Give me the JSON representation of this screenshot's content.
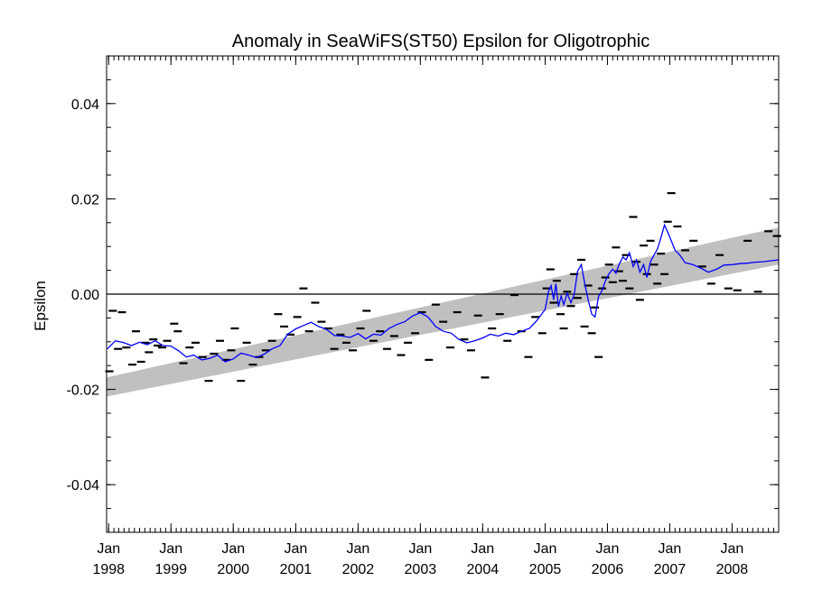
{
  "chart_data": {
    "type": "line",
    "title": "Anomaly in SeaWiFS(ST50) Epsilon for Oligotrophic",
    "ylabel": "Epsilon",
    "xlabel": "",
    "xlim": [
      "1997-12-20",
      "2008-09-30"
    ],
    "ylim": [
      -0.05,
      0.05
    ],
    "y_ticks": [
      "0.04",
      "0.02",
      "0.00",
      "-0.02",
      "-0.04"
    ],
    "x_ticks": [
      {
        "month": "Jan",
        "year": "1998",
        "date": "1998-01-01"
      },
      {
        "month": "Jan",
        "year": "1999",
        "date": "1999-01-01"
      },
      {
        "month": "Jan",
        "year": "2000",
        "date": "2000-01-01"
      },
      {
        "month": "Jan",
        "year": "2001",
        "date": "2001-01-01"
      },
      {
        "month": "Jan",
        "year": "2002",
        "date": "2002-01-01"
      },
      {
        "month": "Jan",
        "year": "2003",
        "date": "2003-01-01"
      },
      {
        "month": "Jan",
        "year": "2004",
        "date": "2004-01-01"
      },
      {
        "month": "Jan",
        "year": "2005",
        "date": "2005-01-01"
      },
      {
        "month": "Jan",
        "year": "2006",
        "date": "2006-01-01"
      },
      {
        "month": "Jan",
        "year": "2007",
        "date": "2007-01-01"
      },
      {
        "month": "Jan",
        "year": "2008",
        "date": "2008-01-01"
      }
    ],
    "zero_line": 0.0,
    "trend_band": {
      "x": [
        "1997-12-20",
        "2008-09-30"
      ],
      "lower": [
        -0.0215,
        0.0062
      ],
      "upper": [
        -0.0175,
        0.014
      ],
      "color": "#c0c0c0"
    },
    "series": [
      {
        "style": "line",
        "color": "#0000ff",
        "x": [
          "1997-12-25",
          "1998-02-10",
          "1998-04-01",
          "1998-05-15",
          "1998-07-01",
          "1998-08-15",
          "1998-10-01",
          "1998-11-15",
          "1999-01-01",
          "1999-02-15",
          "1999-04-01",
          "1999-05-15",
          "1999-07-01",
          "1999-08-15",
          "1999-10-01",
          "1999-11-15",
          "2000-01-01",
          "2000-02-15",
          "2000-04-01",
          "2000-05-15",
          "2000-07-01",
          "2000-08-15",
          "2000-10-01",
          "2000-11-15",
          "2001-01-01",
          "2001-02-15",
          "2001-04-01",
          "2001-05-15",
          "2001-07-01",
          "2001-08-15",
          "2001-10-01",
          "2001-11-15",
          "2002-01-01",
          "2002-02-15",
          "2002-04-01",
          "2002-05-15",
          "2002-07-01",
          "2002-08-15",
          "2002-10-01",
          "2002-11-15",
          "2003-01-01",
          "2003-02-15",
          "2003-04-01",
          "2003-05-15",
          "2003-07-01",
          "2003-08-15",
          "2003-10-01",
          "2003-11-15",
          "2004-01-01",
          "2004-02-15",
          "2004-04-01",
          "2004-05-15",
          "2004-07-01",
          "2004-08-15",
          "2004-10-01",
          "2004-11-15",
          "2005-01-01",
          "2005-01-20",
          "2005-02-05",
          "2005-02-20",
          "2005-03-05",
          "2005-03-20",
          "2005-04-05",
          "2005-04-20",
          "2005-05-10",
          "2005-06-01",
          "2005-06-20",
          "2005-07-10",
          "2005-08-01",
          "2005-08-20",
          "2005-09-10",
          "2005-10-01",
          "2005-10-20",
          "2005-11-10",
          "2005-12-01",
          "2005-12-20",
          "2006-01-10",
          "2006-02-01",
          "2006-02-20",
          "2006-03-10",
          "2006-04-01",
          "2006-04-20",
          "2006-05-10",
          "2006-06-01",
          "2006-06-20",
          "2006-07-10",
          "2006-08-01",
          "2006-08-20",
          "2006-09-10",
          "2006-10-01",
          "2006-10-20",
          "2006-11-10",
          "2006-12-01",
          "2006-12-20",
          "2007-01-10",
          "2007-02-01",
          "2007-03-01",
          "2007-04-01",
          "2007-05-15",
          "2007-07-01",
          "2007-08-15",
          "2007-10-01",
          "2007-11-15",
          "2008-01-01",
          "2008-02-15",
          "2008-04-01",
          "2008-05-15",
          "2008-07-01",
          "2008-08-15",
          "2008-09-30"
        ],
        "values": [
          -0.0115,
          -0.0098,
          -0.0102,
          -0.0108,
          -0.0101,
          -0.0106,
          -0.0098,
          -0.0108,
          -0.0109,
          -0.0119,
          -0.0132,
          -0.0128,
          -0.0138,
          -0.0135,
          -0.0128,
          -0.0142,
          -0.0136,
          -0.0124,
          -0.0128,
          -0.0133,
          -0.0126,
          -0.0115,
          -0.0108,
          -0.0084,
          -0.0073,
          -0.0066,
          -0.0059,
          -0.0068,
          -0.0074,
          -0.0087,
          -0.0088,
          -0.0091,
          -0.0083,
          -0.0094,
          -0.0084,
          -0.0086,
          -0.0072,
          -0.0064,
          -0.0058,
          -0.0046,
          -0.0039,
          -0.0048,
          -0.0068,
          -0.0078,
          -0.0082,
          -0.0095,
          -0.0102,
          -0.0098,
          -0.0092,
          -0.0084,
          -0.0088,
          -0.0082,
          -0.0085,
          -0.0078,
          -0.0072,
          -0.0055,
          -0.0032,
          0.0005,
          0.0018,
          -0.0012,
          0.0022,
          -0.0026,
          -0.0004,
          -0.0022,
          0.0002,
          -0.0018,
          -0.0001,
          0.0048,
          0.0062,
          0.0024,
          -0.0012,
          -0.0042,
          -0.0048,
          -0.0005,
          0.0008,
          0.0028,
          0.0043,
          0.0052,
          0.0044,
          0.0062,
          0.0078,
          0.0072,
          0.0087,
          0.0058,
          0.0072,
          0.0046,
          0.0062,
          0.0035,
          0.0068,
          0.0082,
          0.0094,
          0.0118,
          0.0145,
          0.013,
          0.0112,
          0.0092,
          0.0082,
          0.0066,
          0.0062,
          0.0055,
          0.0046,
          0.0052,
          0.0061,
          0.0062,
          0.0064,
          0.0065,
          0.0067,
          0.0068,
          0.007,
          0.0072
        ]
      },
      {
        "style": "dash-markers",
        "color": "#000000",
        "x": [
          "1998-01-05",
          "1998-01-25",
          "1998-02-25",
          "1998-03-20",
          "1998-04-15",
          "1998-05-20",
          "1998-06-10",
          "1998-07-10",
          "1998-08-05",
          "1998-08-25",
          "1998-09-20",
          "1998-10-15",
          "1998-11-10",
          "1998-12-10",
          "1999-01-20",
          "1999-02-10",
          "1999-03-15",
          "1999-04-20",
          "1999-05-25",
          "1999-07-05",
          "1999-08-10",
          "1999-09-10",
          "1999-10-15",
          "1999-11-20",
          "1999-12-20",
          "2000-01-10",
          "2000-02-15",
          "2000-03-20",
          "2000-04-25",
          "2000-06-01",
          "2000-07-10",
          "2000-08-15",
          "2000-09-20",
          "2000-10-25",
          "2000-12-01",
          "2001-01-10",
          "2001-02-15",
          "2001-03-20",
          "2001-04-25",
          "2001-06-01",
          "2001-07-10",
          "2001-08-15",
          "2001-09-20",
          "2001-10-25",
          "2001-12-01",
          "2002-01-15",
          "2002-02-20",
          "2002-04-01",
          "2002-05-10",
          "2002-06-20",
          "2002-08-01",
          "2002-09-10",
          "2002-10-20",
          "2002-12-01",
          "2003-01-10",
          "2003-02-20",
          "2003-04-01",
          "2003-05-15",
          "2003-06-25",
          "2003-08-05",
          "2003-09-15",
          "2003-10-25",
          "2003-12-05",
          "2004-01-15",
          "2004-02-25",
          "2004-04-10",
          "2004-05-25",
          "2004-07-05",
          "2004-08-15",
          "2004-09-25",
          "2004-11-05",
          "2004-12-15",
          "2005-01-10",
          "2005-02-01",
          "2005-02-20",
          "2005-03-10",
          "2005-04-01",
          "2005-04-20",
          "2005-05-10",
          "2005-06-01",
          "2005-06-20",
          "2005-07-10",
          "2005-08-01",
          "2005-08-20",
          "2005-09-10",
          "2005-10-01",
          "2005-10-20",
          "2005-11-10",
          "2005-12-01",
          "2005-12-20",
          "2006-01-10",
          "2006-02-01",
          "2006-02-20",
          "2006-03-10",
          "2006-04-01",
          "2006-04-20",
          "2006-05-10",
          "2006-06-01",
          "2006-06-20",
          "2006-07-10",
          "2006-08-01",
          "2006-08-20",
          "2006-09-10",
          "2006-10-01",
          "2006-10-20",
          "2006-11-10",
          "2006-12-01",
          "2006-12-20",
          "2007-01-10",
          "2007-02-15",
          "2007-04-01",
          "2007-05-20",
          "2007-07-10",
          "2007-09-01",
          "2007-10-20",
          "2007-12-10",
          "2008-02-01",
          "2008-04-01",
          "2008-06-01",
          "2008-08-01",
          "2008-09-20"
        ],
        "values": [
          -0.0162,
          -0.0035,
          -0.0115,
          -0.0038,
          -0.0112,
          -0.0148,
          -0.0078,
          -0.0142,
          -0.0102,
          -0.0122,
          -0.0095,
          -0.0108,
          -0.0112,
          -0.0098,
          -0.0062,
          -0.0078,
          -0.0145,
          -0.0112,
          -0.0102,
          -0.0132,
          -0.0182,
          -0.0125,
          -0.0098,
          -0.0138,
          -0.0118,
          -0.0072,
          -0.0182,
          -0.0102,
          -0.0148,
          -0.0132,
          -0.0118,
          -0.0098,
          -0.0042,
          -0.0068,
          -0.0085,
          -0.0048,
          0.0012,
          -0.0078,
          -0.0018,
          -0.0058,
          -0.0072,
          -0.0115,
          -0.0085,
          -0.0102,
          -0.0118,
          -0.0072,
          -0.0035,
          -0.0098,
          -0.0078,
          -0.0115,
          -0.0088,
          -0.0128,
          -0.0102,
          -0.0082,
          -0.0038,
          -0.0138,
          -0.0022,
          -0.0058,
          -0.0112,
          -0.0038,
          -0.0095,
          -0.0118,
          -0.0045,
          -0.0175,
          -0.0072,
          -0.0042,
          -0.0098,
          -0.0002,
          -0.0078,
          -0.0132,
          -0.0048,
          -0.0082,
          0.0012,
          0.0052,
          -0.0018,
          0.0028,
          -0.0042,
          -0.0072,
          0.0005,
          -0.0025,
          0.0042,
          -0.0008,
          0.0072,
          -0.0068,
          0.0018,
          -0.0082,
          -0.0028,
          -0.0132,
          0.0012,
          0.0035,
          0.0062,
          0.0025,
          0.0098,
          0.0048,
          0.0028,
          0.0082,
          0.0012,
          0.0162,
          0.0068,
          -0.0012,
          0.0102,
          0.0042,
          0.0112,
          0.0062,
          0.0022,
          0.0085,
          0.0042,
          0.0152,
          0.0212,
          0.0142,
          0.0092,
          0.0112,
          0.0058,
          0.0022,
          0.0082,
          0.0012,
          0.0008,
          0.0112,
          0.0005,
          0.0132,
          0.0122
        ]
      }
    ]
  }
}
